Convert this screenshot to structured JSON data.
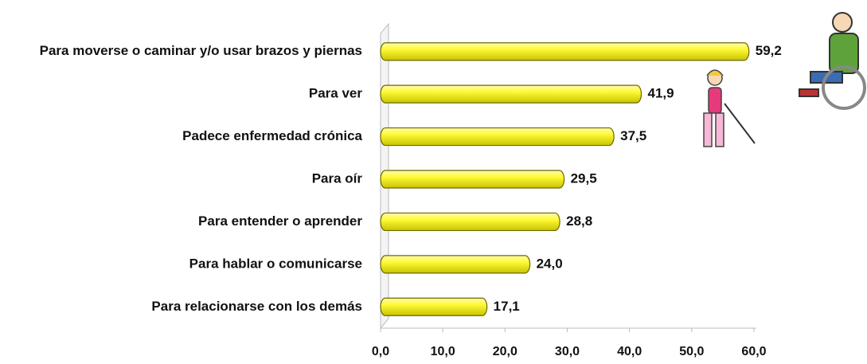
{
  "chart_data": {
    "type": "bar",
    "orientation": "horizontal",
    "categories": [
      "Para moverse o caminar y/o usar brazos y piernas",
      "Para ver",
      "Padece enfermedad crónica",
      "Para oír",
      "Para entender o aprender",
      "Para hablar o comunicarse",
      "Para relacionarse con los demás"
    ],
    "values": [
      59.2,
      41.9,
      37.5,
      29.5,
      28.8,
      24.0,
      17.1
    ],
    "value_labels": [
      "59,2",
      "41,9",
      "37,5",
      "29,5",
      "28,8",
      "24,0",
      "17,1"
    ],
    "color": "#f2ee2a",
    "xlim": [
      0,
      60
    ],
    "xticks": [
      {
        "value": 0,
        "label": "0,0"
      },
      {
        "value": 10,
        "label": "10,0"
      },
      {
        "value": 20,
        "label": "20,0"
      },
      {
        "value": 30,
        "label": "30,0"
      },
      {
        "value": 40,
        "label": "40,0"
      },
      {
        "value": 50,
        "label": "50,0"
      },
      {
        "value": 60,
        "label": "60,0"
      }
    ],
    "grid": false
  }
}
